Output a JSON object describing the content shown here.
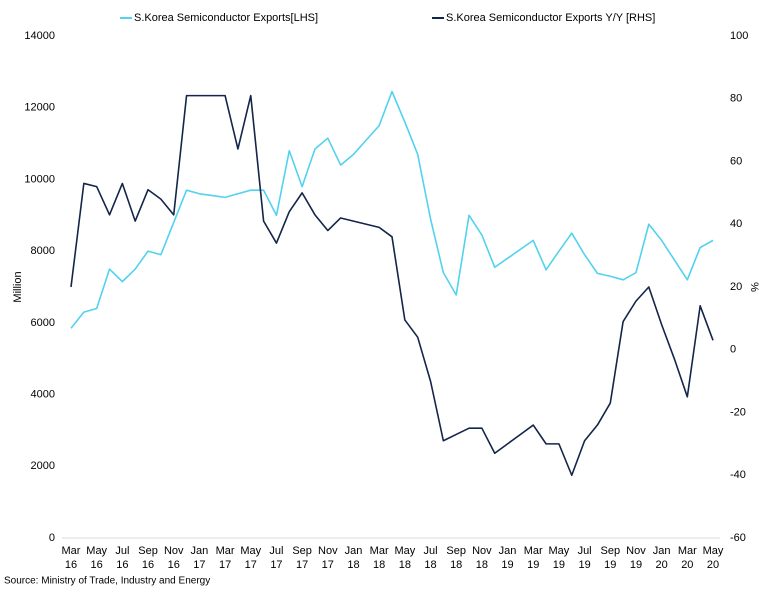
{
  "chart_data": {
    "type": "line",
    "source": "Source: Ministry of Trade, Industry and Energy",
    "ylabel": "Million",
    "y2label": "%",
    "categories": [
      "Mar 16",
      null,
      "May 16",
      null,
      "Jul 16",
      null,
      "Sep 16",
      null,
      "Nov 16",
      null,
      "Jan 17",
      null,
      "Mar 17",
      null,
      "May 17",
      null,
      "Jul 17",
      null,
      "Sep 17",
      null,
      "Nov 17",
      null,
      "Jan 18",
      null,
      "Mar 18",
      null,
      "May 18",
      null,
      "Jul 18",
      null,
      "Sep 18",
      null,
      "Nov 18",
      null,
      "Jan 19",
      null,
      "Mar 19",
      null,
      "May 19",
      null,
      "Jul 19",
      null,
      "Sep 19",
      null,
      "Nov 19",
      null,
      "Jan 20",
      null,
      "Mar 20",
      null,
      "May 20"
    ],
    "series": [
      {
        "name": "S.Korea Semiconductor Exports[LHS]",
        "color": "#52d2ee",
        "values": [
          5850,
          6300,
          6400,
          7500,
          7150,
          7500,
          8000,
          7900,
          8800,
          9700,
          9600,
          9550,
          9500,
          9600,
          9700,
          9700,
          9000,
          10800,
          9800,
          10850,
          11150,
          10400,
          10700,
          11100,
          11500,
          12450,
          11600,
          10700,
          8900,
          7400,
          6780,
          9000,
          8450,
          7550,
          7800,
          8050,
          8300,
          7480,
          8000,
          8500,
          7900,
          7380,
          7300,
          7200,
          7400,
          8750,
          8300,
          7750,
          7200,
          8100,
          8300
        ]
      },
      {
        "name": "S.Korea Semiconductor Exports Y/Y [RHS]",
        "color": "#14254a",
        "axis": "y2",
        "values": [
          20,
          53,
          52,
          43,
          53,
          41,
          51,
          48,
          43,
          81,
          81,
          81,
          81,
          64,
          81,
          41,
          34,
          44,
          50,
          43,
          38,
          42,
          41,
          40,
          39,
          36,
          9.5,
          4,
          -10,
          -29,
          -27,
          -25,
          -25,
          -33,
          -30,
          -27,
          -24,
          -30,
          -30,
          -40,
          -29,
          -24,
          -17,
          9,
          15.5,
          20,
          8,
          -3,
          -15,
          14,
          3
        ]
      }
    ],
    "ylim": [
      0,
      14000
    ],
    "yticks": [
      0,
      2000,
      4000,
      6000,
      8000,
      10000,
      12000,
      14000
    ],
    "y2lim": [
      -60,
      100
    ],
    "y2ticks": [
      -60,
      -40,
      -20,
      0,
      20,
      40,
      60,
      80,
      100
    ],
    "grid": false
  }
}
